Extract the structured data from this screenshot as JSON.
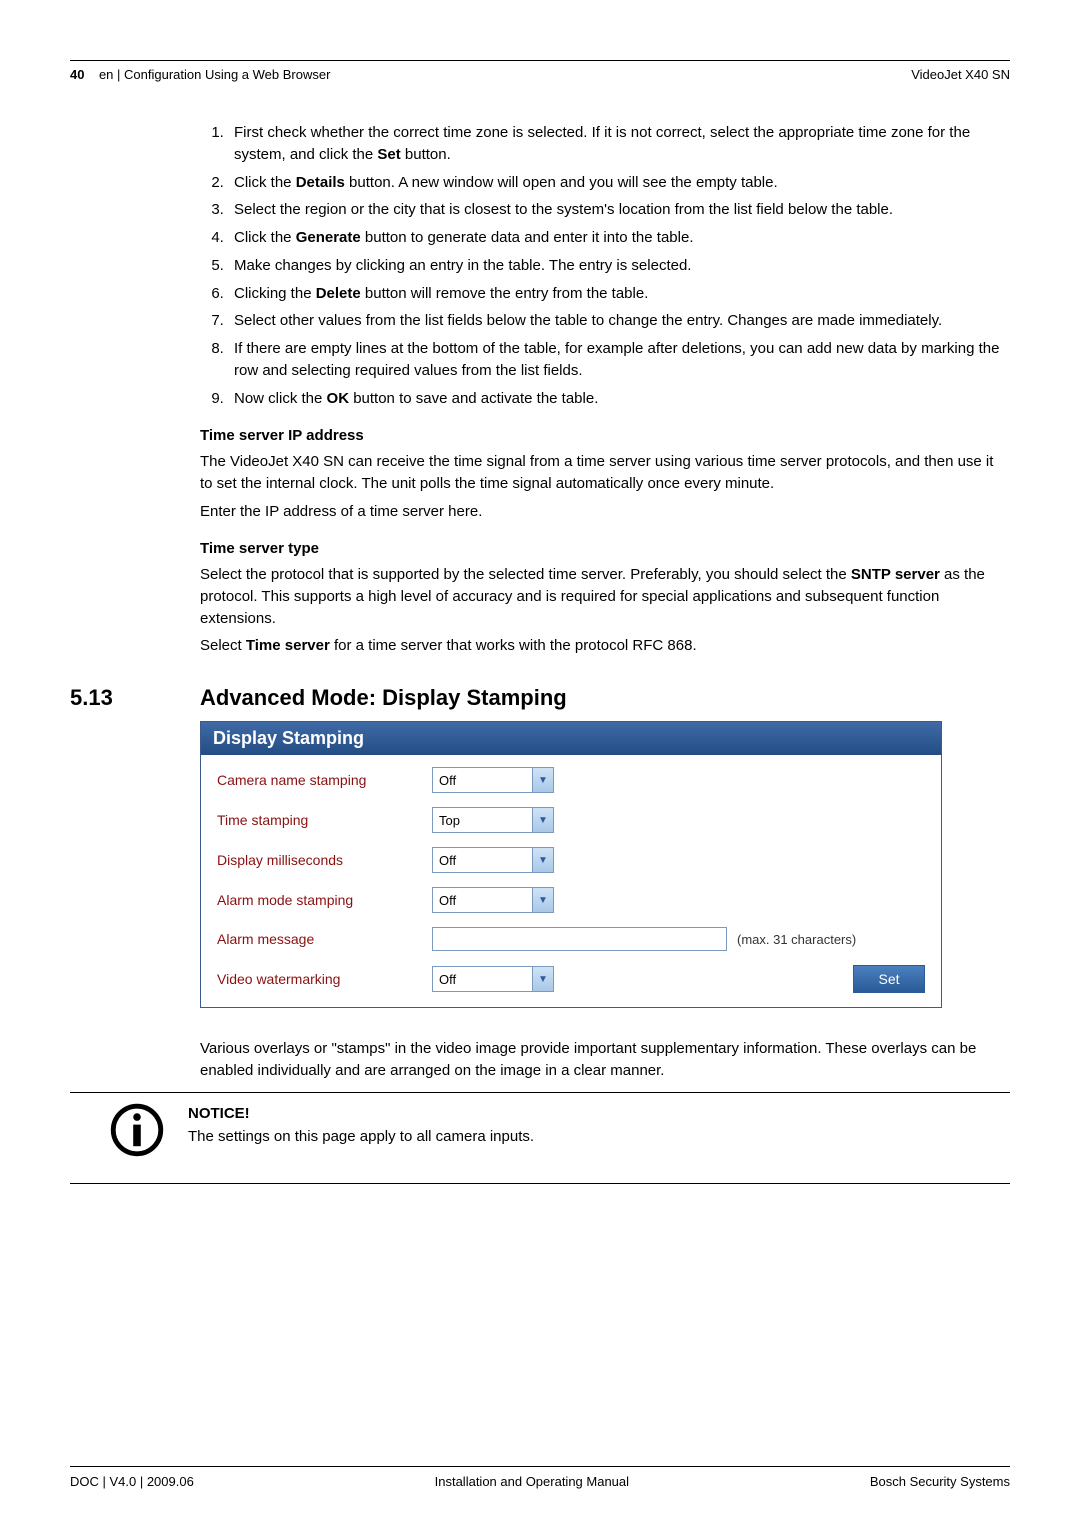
{
  "header": {
    "page_number": "40",
    "section_path": "en | Configuration Using a Web Browser",
    "product": "VideoJet X40 SN"
  },
  "steps": [
    "First check whether the correct time zone is selected. If it is not correct, select the appropriate time zone for the system, and click the <b>Set</b> button.",
    "Click the <b>Details</b> button. A new window will open and you will see the empty table.",
    "Select the region or the city that is closest to the system's location from the list field below the table.",
    "Click the <b>Generate</b> button to generate data and enter it into the table.",
    "Make changes by clicking an entry in the table. The entry is selected.",
    "Clicking the <b>Delete</b> button will remove the entry from the table.",
    "Select other values from the list fields below the table to change the entry. Changes are made immediately.",
    "If there are empty lines at the bottom of the table, for example after deletions, you can add new data by marking the row and selecting required values from the list fields.",
    "Now click the <b>OK</b> button to save and activate the table."
  ],
  "time_server_ip": {
    "heading": "Time server IP address",
    "p1": "The VideoJet X40 SN can receive the time signal from a time server using various time server protocols, and then use it to set the internal clock. The unit polls the time signal automatically once every minute.",
    "p2": "Enter the IP address of a time server here."
  },
  "time_server_type": {
    "heading": "Time server type",
    "p1": "Select the protocol that is supported by the selected time server. Preferably, you should select the <b>SNTP server</b> as the protocol. This supports a high level of accuracy and is required for special applications and subsequent function extensions.",
    "p2": "Select <b>Time server</b> for a time server that works with the protocol RFC 868."
  },
  "section": {
    "number": "5.13",
    "title": "Advanced Mode: Display Stamping"
  },
  "panel": {
    "title": "Display Stamping",
    "rows": {
      "camera_name": {
        "label": "Camera name stamping",
        "value": "Off"
      },
      "time_stamp": {
        "label": "Time stamping",
        "value": "Top"
      },
      "millis": {
        "label": "Display milliseconds",
        "value": "Off"
      },
      "alarm_mode": {
        "label": "Alarm mode stamping",
        "value": "Off"
      },
      "alarm_msg": {
        "label": "Alarm message",
        "value": "",
        "hint": "(max. 31 characters)"
      },
      "watermark": {
        "label": "Video watermarking",
        "value": "Off"
      }
    },
    "set_button": "Set",
    "colors": {
      "title_bg_top": "#3f6aa5",
      "title_bg_bottom": "#244d85",
      "label_color": "#8a1010",
      "border": "#3b5b8f"
    }
  },
  "after_panel": {
    "p1": "Various overlays or \"stamps\" in the video image provide important supplementary information. These overlays can be enabled individually and are arranged on the image in a clear manner."
  },
  "notice": {
    "heading": "NOTICE!",
    "text": "The settings on this page apply to all camera inputs."
  },
  "footer": {
    "left": "DOC | V4.0 | 2009.06",
    "center": "Installation and Operating Manual",
    "right": "Bosch Security Systems"
  }
}
